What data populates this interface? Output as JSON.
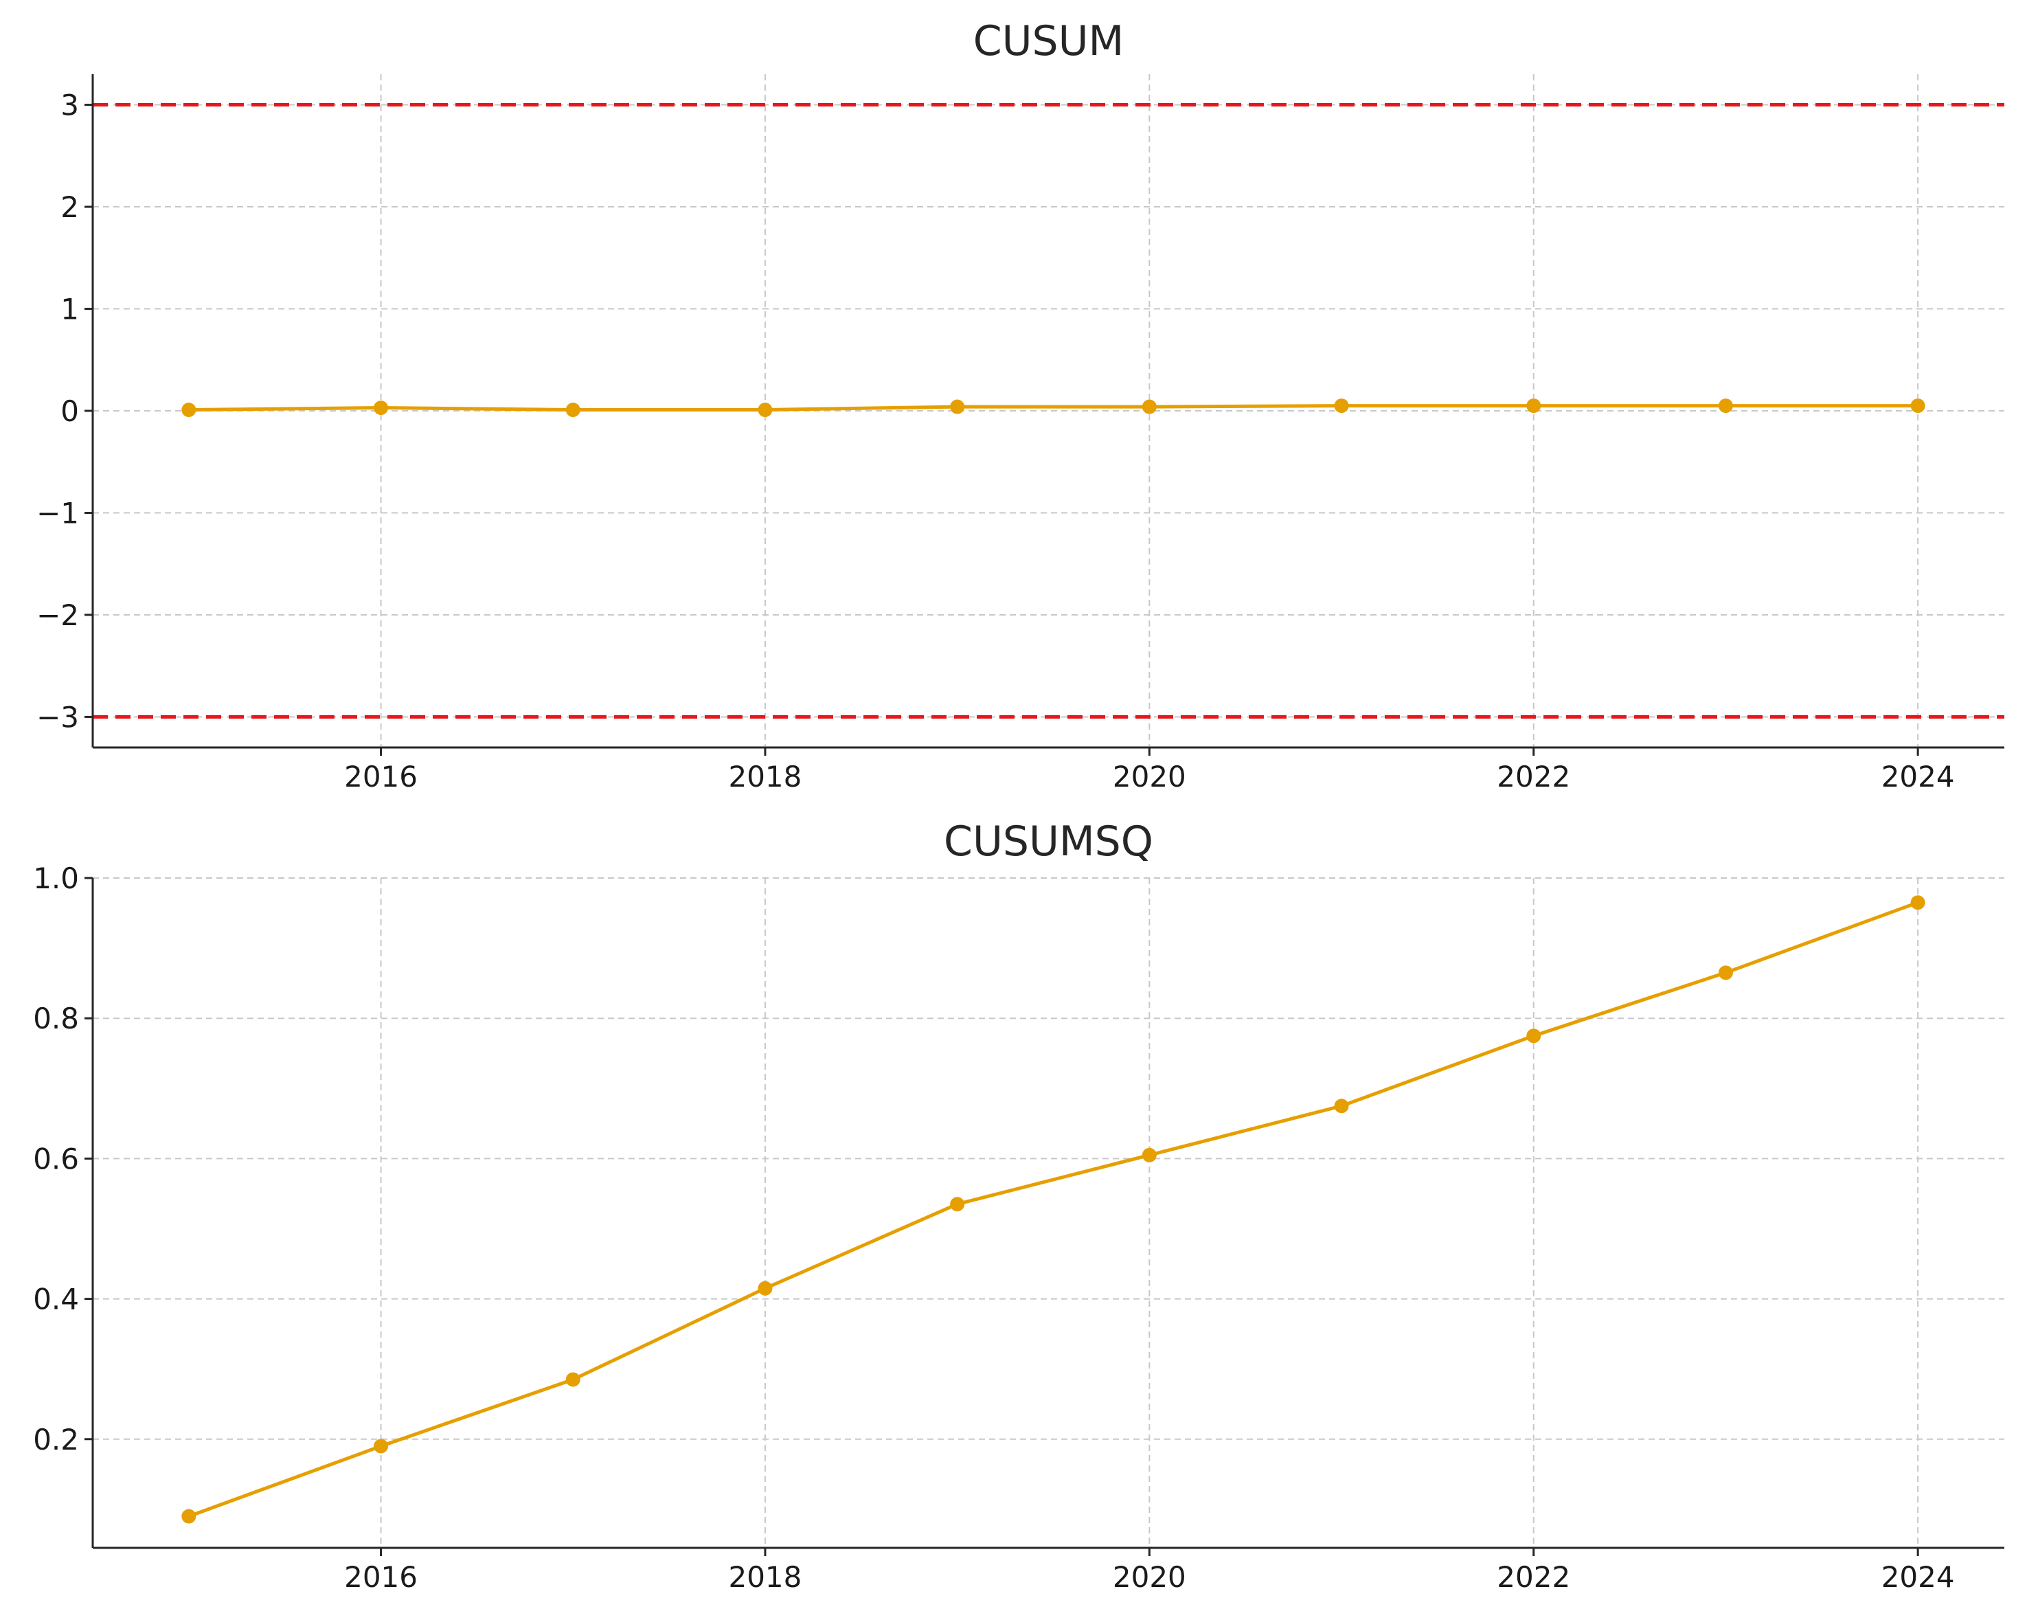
{
  "colors": {
    "series": "#E69F00",
    "reference": "#E8161B"
  },
  "chart_data": [
    {
      "type": "line",
      "title": "CUSUM",
      "xlabel": "",
      "ylabel": "",
      "x": [
        2015,
        2016,
        2017,
        2018,
        2019,
        2020,
        2021,
        2022,
        2023,
        2024
      ],
      "series": [
        {
          "values": [
            0.01,
            0.03,
            0.01,
            0.01,
            0.04,
            0.04,
            0.05,
            0.05,
            0.05,
            0.05
          ]
        }
      ],
      "reference_lines": [
        3,
        -3
      ],
      "xlim": [
        2014.5,
        2024.45
      ],
      "ylim": [
        -3.3,
        3.3
      ],
      "xticks": [
        2016,
        2018,
        2020,
        2022,
        2024
      ],
      "xtick_labels": [
        "2016",
        "2018",
        "2020",
        "2022",
        "2024"
      ],
      "yticks": [
        3,
        2,
        1,
        0,
        -1,
        -2,
        -3
      ],
      "ytick_labels": [
        "3",
        "2",
        "1",
        "0",
        "−1",
        "−2",
        "−3"
      ],
      "grid": true
    },
    {
      "type": "line",
      "title": "CUSUMSQ",
      "xlabel": "",
      "ylabel": "",
      "x": [
        2015,
        2016,
        2017,
        2018,
        2019,
        2020,
        2021,
        2022,
        2023,
        2024
      ],
      "series": [
        {
          "values": [
            0.09,
            0.19,
            0.285,
            0.415,
            0.535,
            0.605,
            0.675,
            0.775,
            0.865,
            0.965
          ]
        }
      ],
      "xlim": [
        2014.5,
        2024.45
      ],
      "ylim": [
        0.045,
        1.0
      ],
      "xticks": [
        2016,
        2018,
        2020,
        2022,
        2024
      ],
      "xtick_labels": [
        "2016",
        "2018",
        "2020",
        "2022",
        "2024"
      ],
      "yticks": [
        1.0,
        0.8,
        0.6,
        0.4,
        0.2
      ],
      "ytick_labels": [
        "1.0",
        "0.8",
        "0.6",
        "0.4",
        "0.2"
      ],
      "grid": true
    }
  ]
}
